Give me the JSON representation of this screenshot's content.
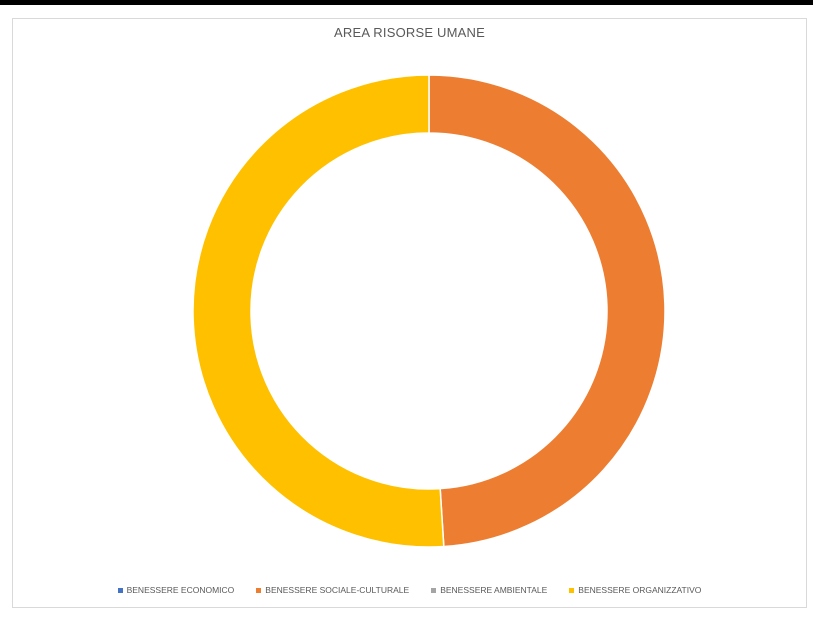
{
  "chart_data": {
    "type": "pie",
    "variant": "donut",
    "title": "AREA RISORSE UMANE",
    "categories": [
      "BENESSERE ECONOMICO",
      "BENESSERE SOCIALE-CULTURALE",
      "BENESSERE AMBIENTALE",
      "BENESSERE ORGANIZZATIVO"
    ],
    "values": [
      0,
      49,
      0,
      51
    ],
    "colors": [
      "#4472C4",
      "#ED7D31",
      "#A5A5A5",
      "#FFC000"
    ],
    "legend_position": "bottom"
  }
}
